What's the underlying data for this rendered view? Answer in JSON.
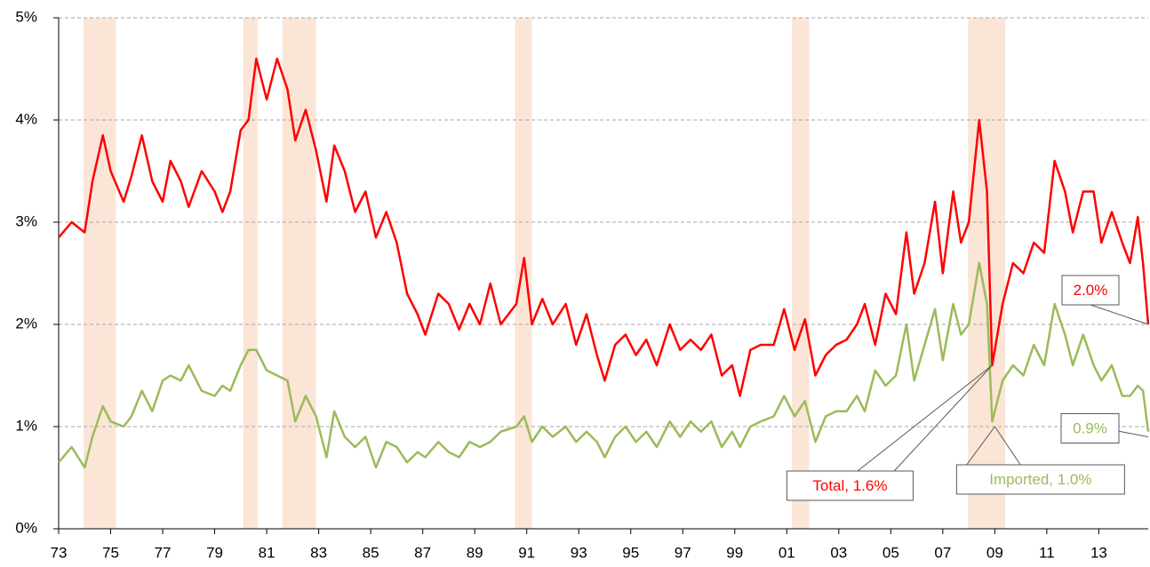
{
  "chart_data": {
    "type": "line",
    "x": [
      1973.0,
      1973.5,
      1974.0,
      1974.3,
      1974.7,
      1975.0,
      1975.5,
      1975.8,
      1976.2,
      1976.6,
      1977.0,
      1977.3,
      1977.7,
      1978.0,
      1978.5,
      1979.0,
      1979.3,
      1979.6,
      1980.0,
      1980.3,
      1980.6,
      1981.0,
      1981.4,
      1981.8,
      1982.1,
      1982.5,
      1982.9,
      1983.3,
      1983.6,
      1984.0,
      1984.4,
      1984.8,
      1985.2,
      1985.6,
      1986.0,
      1986.4,
      1986.8,
      1987.1,
      1987.6,
      1988.0,
      1988.4,
      1988.8,
      1989.2,
      1989.6,
      1990.0,
      1990.6,
      1990.9,
      1991.2,
      1991.6,
      1992.0,
      1992.5,
      1992.9,
      1993.3,
      1993.7,
      1994.0,
      1994.4,
      1994.8,
      1995.2,
      1995.6,
      1996.0,
      1996.5,
      1996.9,
      1997.3,
      1997.7,
      1998.1,
      1998.5,
      1998.9,
      1999.2,
      1999.6,
      2000.0,
      2000.5,
      2000.9,
      2001.3,
      2001.7,
      2002.1,
      2002.5,
      2002.9,
      2003.3,
      2003.7,
      2004.0,
      2004.4,
      2004.8,
      2005.2,
      2005.6,
      2005.9,
      2006.3,
      2006.7,
      2007.0,
      2007.4,
      2007.7,
      2008.0,
      2008.4,
      2008.7,
      2008.9,
      2009.3,
      2009.7,
      2010.1,
      2010.5,
      2010.9,
      2011.3,
      2011.7,
      2012.0,
      2012.4,
      2012.8,
      2013.1,
      2013.5,
      2013.9,
      2014.2,
      2014.5,
      2014.7,
      2014.9
    ],
    "series": [
      {
        "name": "Total",
        "color": "#ff0000",
        "values": [
          2.85,
          3.0,
          2.9,
          3.4,
          3.85,
          3.5,
          3.2,
          3.45,
          3.85,
          3.4,
          3.2,
          3.6,
          3.4,
          3.15,
          3.5,
          3.3,
          3.1,
          3.3,
          3.9,
          4.0,
          4.6,
          4.2,
          4.6,
          4.3,
          3.8,
          4.1,
          3.7,
          3.2,
          3.75,
          3.5,
          3.1,
          3.3,
          2.85,
          3.1,
          2.8,
          2.3,
          2.1,
          1.9,
          2.3,
          2.2,
          1.95,
          2.2,
          2.0,
          2.4,
          2.0,
          2.2,
          2.65,
          2.0,
          2.25,
          2.0,
          2.2,
          1.8,
          2.1,
          1.7,
          1.45,
          1.8,
          1.9,
          1.7,
          1.85,
          1.6,
          2.0,
          1.75,
          1.85,
          1.75,
          1.9,
          1.5,
          1.6,
          1.3,
          1.75,
          1.8,
          1.8,
          2.15,
          1.75,
          2.05,
          1.5,
          1.7,
          1.8,
          1.85,
          2.0,
          2.2,
          1.8,
          2.3,
          2.1,
          2.9,
          2.3,
          2.6,
          3.2,
          2.5,
          3.3,
          2.8,
          3.0,
          4.0,
          3.3,
          1.6,
          2.2,
          2.6,
          2.5,
          2.8,
          2.7,
          3.6,
          3.3,
          2.9,
          3.3,
          3.3,
          2.8,
          3.1,
          2.8,
          2.6,
          3.05,
          2.6,
          2.0
        ]
      },
      {
        "name": "Imported",
        "color": "#9bbb59",
        "values": [
          0.65,
          0.8,
          0.6,
          0.9,
          1.2,
          1.05,
          1.0,
          1.1,
          1.35,
          1.15,
          1.45,
          1.5,
          1.45,
          1.6,
          1.35,
          1.3,
          1.4,
          1.35,
          1.6,
          1.75,
          1.75,
          1.55,
          1.5,
          1.45,
          1.05,
          1.3,
          1.1,
          0.7,
          1.15,
          0.9,
          0.8,
          0.9,
          0.6,
          0.85,
          0.8,
          0.65,
          0.75,
          0.7,
          0.85,
          0.75,
          0.7,
          0.85,
          0.8,
          0.85,
          0.95,
          1.0,
          1.1,
          0.85,
          1.0,
          0.9,
          1.0,
          0.85,
          0.95,
          0.85,
          0.7,
          0.9,
          1.0,
          0.85,
          0.95,
          0.8,
          1.05,
          0.9,
          1.05,
          0.95,
          1.05,
          0.8,
          0.95,
          0.8,
          1.0,
          1.05,
          1.1,
          1.3,
          1.1,
          1.25,
          0.85,
          1.1,
          1.15,
          1.15,
          1.3,
          1.15,
          1.55,
          1.4,
          1.5,
          2.0,
          1.45,
          1.8,
          2.15,
          1.65,
          2.2,
          1.9,
          2.0,
          2.6,
          2.2,
          1.05,
          1.45,
          1.6,
          1.5,
          1.8,
          1.6,
          2.2,
          1.9,
          1.6,
          1.9,
          1.6,
          1.45,
          1.6,
          1.3,
          1.3,
          1.4,
          1.35,
          0.95
        ]
      }
    ],
    "xlim": [
      1973,
      2014.9
    ],
    "xticks": [
      {
        "value": 1973,
        "label": "73"
      },
      {
        "value": 1975,
        "label": "75"
      },
      {
        "value": 1977,
        "label": "77"
      },
      {
        "value": 1979,
        "label": "79"
      },
      {
        "value": 1981,
        "label": "81"
      },
      {
        "value": 1983,
        "label": "83"
      },
      {
        "value": 1985,
        "label": "85"
      },
      {
        "value": 1987,
        "label": "87"
      },
      {
        "value": 1989,
        "label": "89"
      },
      {
        "value": 1991,
        "label": "91"
      },
      {
        "value": 1993,
        "label": "93"
      },
      {
        "value": 1995,
        "label": "95"
      },
      {
        "value": 1997,
        "label": "97"
      },
      {
        "value": 1999,
        "label": "99"
      },
      {
        "value": 2001,
        "label": "01"
      },
      {
        "value": 2003,
        "label": "03"
      },
      {
        "value": 2005,
        "label": "05"
      },
      {
        "value": 2007,
        "label": "07"
      },
      {
        "value": 2009,
        "label": "09"
      },
      {
        "value": 2011,
        "label": "11"
      },
      {
        "value": 2013,
        "label": "13"
      }
    ],
    "ylim": [
      0,
      5
    ],
    "yticks": [
      {
        "value": 0,
        "label": "0%"
      },
      {
        "value": 1,
        "label": "1%"
      },
      {
        "value": 2,
        "label": "2%"
      },
      {
        "value": 3,
        "label": "3%"
      },
      {
        "value": 4,
        "label": "4%"
      },
      {
        "value": 5,
        "label": "5%"
      }
    ],
    "grid": true,
    "shading_color": "#fbe5d6",
    "shaded_periods": [
      [
        1973.96,
        1975.2
      ],
      [
        1980.1,
        1980.65
      ],
      [
        1981.6,
        1982.9
      ],
      [
        1990.55,
        1991.2
      ],
      [
        2001.2,
        2001.86
      ],
      [
        2007.97,
        2009.4
      ]
    ],
    "annotations": [
      {
        "text": "Total, 1.6%",
        "x": 2008.9,
        "y": 1.6,
        "color": "#ff0000"
      },
      {
        "text": "Imported, 1.0%",
        "x": 2009.0,
        "y": 1.0,
        "color": "#9bbb59"
      },
      {
        "text": "2.0%",
        "x": 2014.9,
        "y": 2.0,
        "color": "#ff0000"
      },
      {
        "text": "0.9%",
        "x": 2014.9,
        "y": 0.9,
        "color": "#9bbb59"
      }
    ]
  }
}
